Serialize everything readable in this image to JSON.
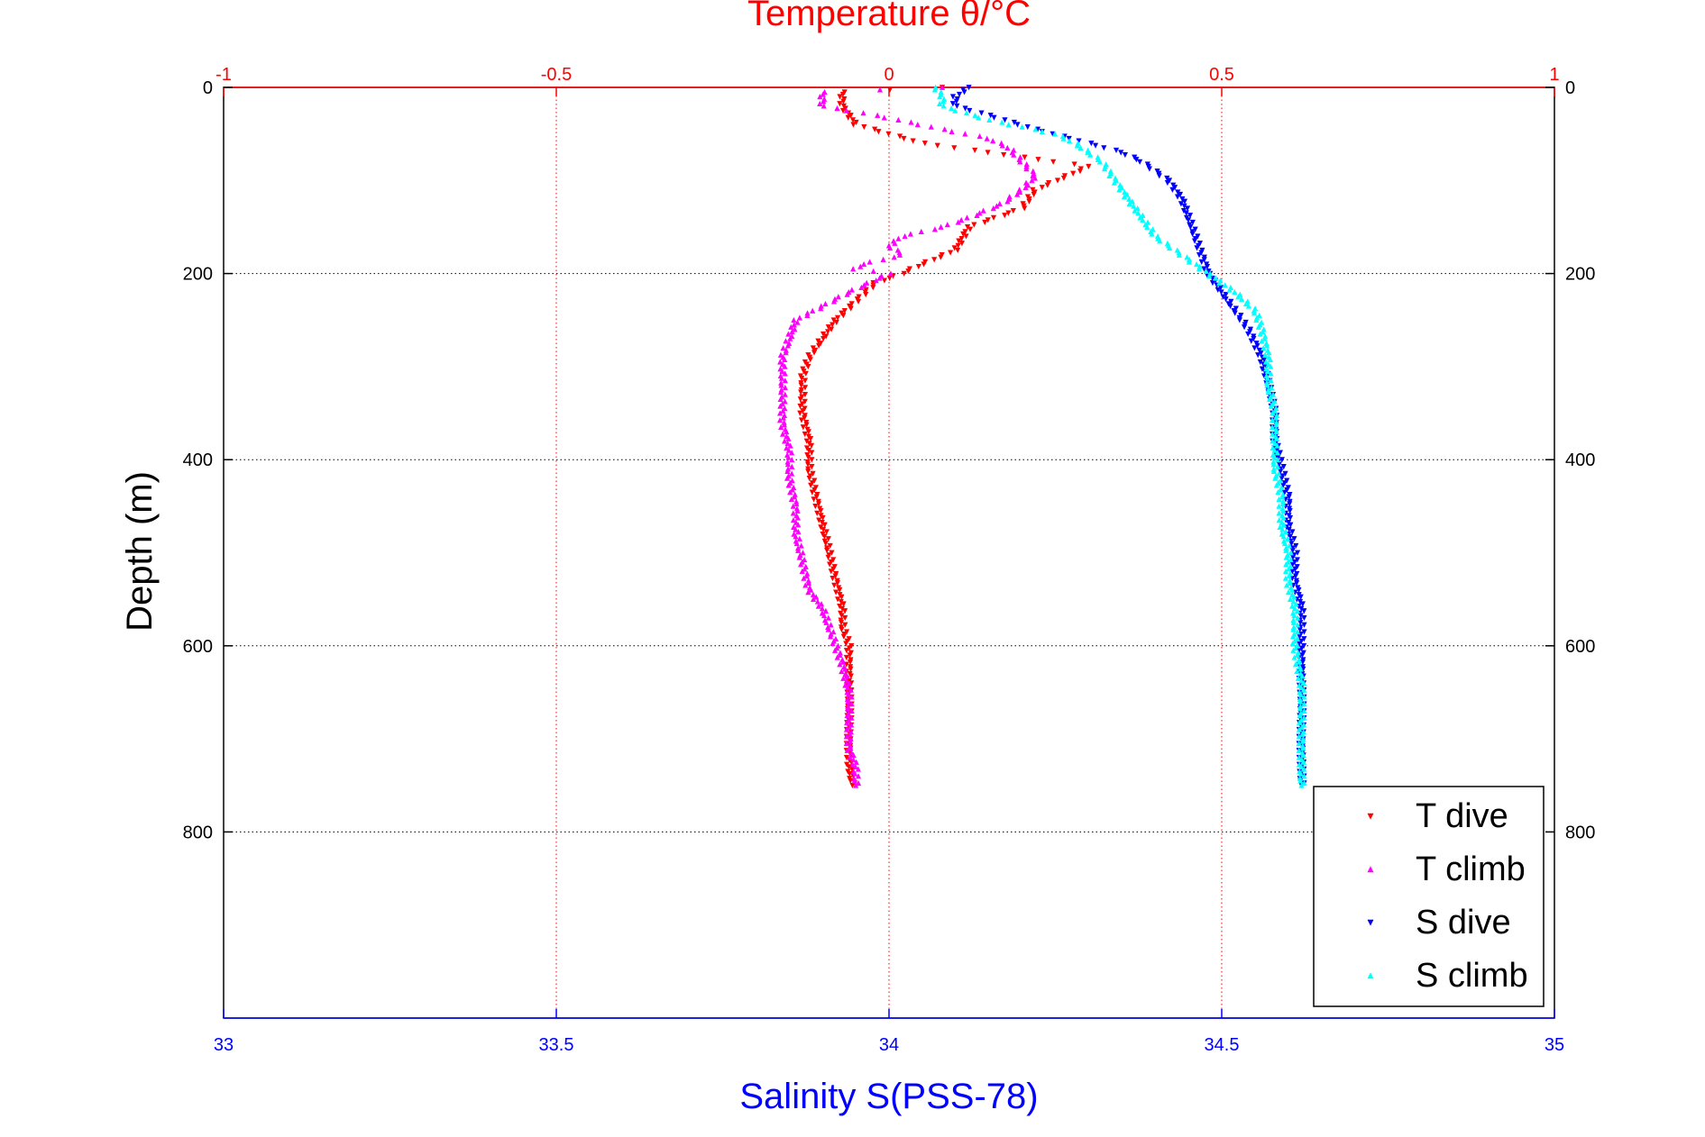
{
  "chart_data": {
    "type": "scatter",
    "title": "Temperature θ/°C",
    "xlabel": "Salinity S(PSS-78)",
    "ylabel": "Depth (m)",
    "x_top": {
      "label": "Temperature θ/°C",
      "range": [
        -1,
        1
      ],
      "ticks": [
        "-1",
        "-0.5",
        "0",
        "0.5",
        "1"
      ],
      "tick_values": [
        -1,
        -0.5,
        0,
        0.5,
        1
      ],
      "color": "#ff0000"
    },
    "x_bottom": {
      "label": "Salinity S(PSS-78)",
      "range": [
        33,
        35
      ],
      "ticks": [
        "33",
        "33.5",
        "34",
        "34.5",
        "35"
      ],
      "tick_values": [
        33,
        33.5,
        34,
        34.5,
        35
      ],
      "color": "#0000ff"
    },
    "y": {
      "label": "Depth (m)",
      "range": [
        0,
        1000
      ],
      "reversed": true,
      "ticks": [
        "0",
        "200",
        "400",
        "600",
        "800"
      ],
      "tick_values": [
        0,
        200,
        400,
        600,
        800
      ]
    },
    "grid": true,
    "legend": {
      "position": "bottom-right"
    },
    "series": [
      {
        "name": "T dive",
        "axis": "temperature",
        "color": "#ff0000",
        "marker": "triangle-down",
        "points": [
          [
            0.08,
            0
          ],
          [
            -0.07,
            5
          ],
          [
            -0.07,
            20
          ],
          [
            -0.05,
            40
          ],
          [
            0.05,
            60
          ],
          [
            0.2,
            75
          ],
          [
            0.3,
            85
          ],
          [
            0.22,
            110
          ],
          [
            0.2,
            130
          ],
          [
            0.12,
            150
          ],
          [
            0.1,
            175
          ],
          [
            0.05,
            190
          ],
          [
            0.02,
            200
          ],
          [
            -0.02,
            210
          ],
          [
            -0.05,
            230
          ],
          [
            -0.08,
            250
          ],
          [
            -0.1,
            270
          ],
          [
            -0.12,
            290
          ],
          [
            -0.13,
            310
          ],
          [
            -0.13,
            330
          ],
          [
            -0.13,
            350
          ],
          [
            -0.12,
            380
          ],
          [
            -0.12,
            410
          ],
          [
            -0.11,
            440
          ],
          [
            -0.1,
            470
          ],
          [
            -0.09,
            500
          ],
          [
            -0.08,
            530
          ],
          [
            -0.07,
            560
          ],
          [
            -0.07,
            580
          ],
          [
            -0.06,
            600
          ],
          [
            -0.06,
            620
          ],
          [
            -0.06,
            650
          ],
          [
            -0.06,
            680
          ],
          [
            -0.06,
            710
          ],
          [
            -0.06,
            730
          ],
          [
            -0.055,
            750
          ]
        ]
      },
      {
        "name": "T climb",
        "axis": "temperature",
        "color": "#ff00ff",
        "marker": "triangle-up",
        "points": [
          [
            0.08,
            0
          ],
          [
            -0.1,
            5
          ],
          [
            -0.1,
            20
          ],
          [
            -0.02,
            30
          ],
          [
            0.08,
            45
          ],
          [
            0.15,
            55
          ],
          [
            0.18,
            65
          ],
          [
            0.2,
            80
          ],
          [
            0.22,
            95
          ],
          [
            0.2,
            110
          ],
          [
            0.17,
            125
          ],
          [
            0.12,
            140
          ],
          [
            0.08,
            150
          ],
          [
            0.02,
            160
          ],
          [
            0.0,
            170
          ],
          [
            0.02,
            180
          ],
          [
            -0.04,
            190
          ],
          [
            -0.05,
            195
          ],
          [
            0.0,
            200
          ],
          [
            -0.06,
            220
          ],
          [
            -0.1,
            235
          ],
          [
            -0.14,
            250
          ],
          [
            -0.15,
            270
          ],
          [
            -0.16,
            290
          ],
          [
            -0.16,
            310
          ],
          [
            -0.16,
            330
          ],
          [
            -0.16,
            360
          ],
          [
            -0.15,
            390
          ],
          [
            -0.15,
            420
          ],
          [
            -0.14,
            450
          ],
          [
            -0.14,
            480
          ],
          [
            -0.13,
            510
          ],
          [
            -0.12,
            540
          ],
          [
            -0.1,
            560
          ],
          [
            -0.09,
            580
          ],
          [
            -0.08,
            600
          ],
          [
            -0.07,
            620
          ],
          [
            -0.06,
            650
          ],
          [
            -0.06,
            680
          ],
          [
            -0.06,
            710
          ],
          [
            -0.05,
            730
          ],
          [
            -0.05,
            750
          ]
        ]
      },
      {
        "name": "S dive",
        "axis": "salinity",
        "color": "#0000ff",
        "marker": "triangle-down",
        "points": [
          [
            34.12,
            0
          ],
          [
            34.1,
            10
          ],
          [
            34.1,
            20
          ],
          [
            34.15,
            30
          ],
          [
            34.22,
            45
          ],
          [
            34.3,
            60
          ],
          [
            34.35,
            70
          ],
          [
            34.38,
            80
          ],
          [
            34.42,
            100
          ],
          [
            34.44,
            120
          ],
          [
            34.45,
            140
          ],
          [
            34.46,
            160
          ],
          [
            34.47,
            180
          ],
          [
            34.48,
            200
          ],
          [
            34.5,
            220
          ],
          [
            34.52,
            240
          ],
          [
            34.54,
            260
          ],
          [
            34.56,
            290
          ],
          [
            34.57,
            320
          ],
          [
            34.58,
            350
          ],
          [
            34.58,
            380
          ],
          [
            34.59,
            410
          ],
          [
            34.6,
            440
          ],
          [
            34.6,
            470
          ],
          [
            34.61,
            500
          ],
          [
            34.61,
            530
          ],
          [
            34.62,
            560
          ],
          [
            34.62,
            600
          ],
          [
            34.62,
            640
          ],
          [
            34.62,
            680
          ],
          [
            34.62,
            720
          ],
          [
            34.62,
            750
          ]
        ]
      },
      {
        "name": "S climb",
        "axis": "salinity",
        "color": "#00ffff",
        "marker": "triangle-up",
        "points": [
          [
            34.07,
            0
          ],
          [
            34.08,
            10
          ],
          [
            34.08,
            20
          ],
          [
            34.15,
            35
          ],
          [
            34.25,
            50
          ],
          [
            34.28,
            60
          ],
          [
            34.32,
            80
          ],
          [
            34.34,
            100
          ],
          [
            34.36,
            120
          ],
          [
            34.38,
            140
          ],
          [
            34.4,
            160
          ],
          [
            34.44,
            180
          ],
          [
            34.48,
            200
          ],
          [
            34.52,
            220
          ],
          [
            34.55,
            240
          ],
          [
            34.56,
            260
          ],
          [
            34.57,
            290
          ],
          [
            34.57,
            320
          ],
          [
            34.58,
            350
          ],
          [
            34.58,
            380
          ],
          [
            34.58,
            410
          ],
          [
            34.59,
            440
          ],
          [
            34.59,
            470
          ],
          [
            34.6,
            500
          ],
          [
            34.6,
            530
          ],
          [
            34.61,
            560
          ],
          [
            34.61,
            600
          ],
          [
            34.62,
            640
          ],
          [
            34.62,
            680
          ],
          [
            34.62,
            720
          ],
          [
            34.62,
            750
          ]
        ]
      }
    ]
  }
}
